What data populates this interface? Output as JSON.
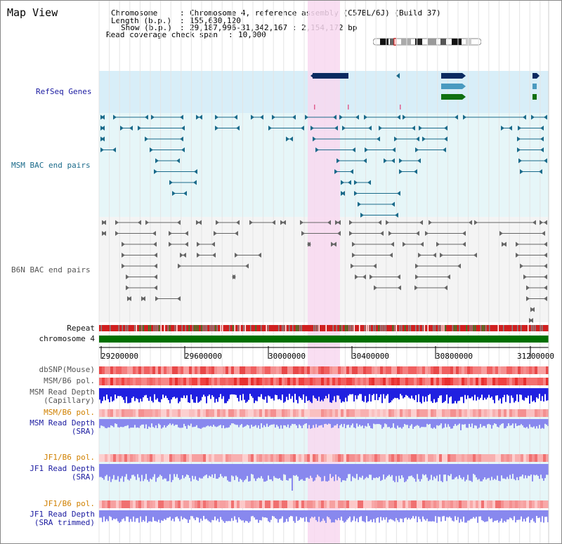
{
  "title": "Map View",
  "info": {
    "chromosome_label": "Chromosome",
    "chromosome_value": "Chromosome 4, reference assembly (C57BL/6J) (Build 37)",
    "length_label": "Length (b.p.)",
    "length_value": "155,630,120",
    "show_label": "Show (b.p.)",
    "show_value": "29,187,996-31,342,167 : 2,154,172 bp",
    "span_label": "Read coverage check span",
    "span_value": "10,000"
  },
  "tracks": {
    "refseq": "RefSeq Genes",
    "msm_bac": "MSM BAC end pairs",
    "b6n_bac": "B6N BAC end pairs",
    "repeat": "Repeat",
    "chromosome": "chromosome 4",
    "dbsnp": "dbSNP(Mouse)",
    "msm_b6_pol_1": "MSM/B6 pol.",
    "msm_depth_cap_1": "MSM Read Depth",
    "msm_depth_cap_2": "(Capillary)",
    "msm_b6_pol_2": "MSM/B6 pol.",
    "msm_depth_sra_1": "MSM Read Depth",
    "msm_depth_sra_2": "(SRA)",
    "jf1_b6_pol_1": "JF1/B6 pol.",
    "jf1_depth_sra_1": "JF1 Read Depth",
    "jf1_depth_sra_2": "(SRA)",
    "jf1_b6_pol_2": "JF1/B6 pol.",
    "jf1_depth_trim_1": "JF1 Read Depth",
    "jf1_depth_trim_2": "(SRA trimmed)"
  },
  "axis_ticks": [
    "29200000",
    "29600000",
    "30000000",
    "30400000",
    "30800000",
    "31200000"
  ],
  "colors": {
    "refseq_bg": "#d8eef8",
    "msm_bg": "#e6f6f8",
    "b6n_bg": "#f4f4f4",
    "highlight": "#f8d8f0",
    "chromosome_bar": "#007000",
    "msm_line": "#1a6a8a",
    "b6n_line": "#666666",
    "depth_blue": "#2020e0",
    "depth_sra": "#8888ee",
    "pol_red": "#f05050"
  }
}
